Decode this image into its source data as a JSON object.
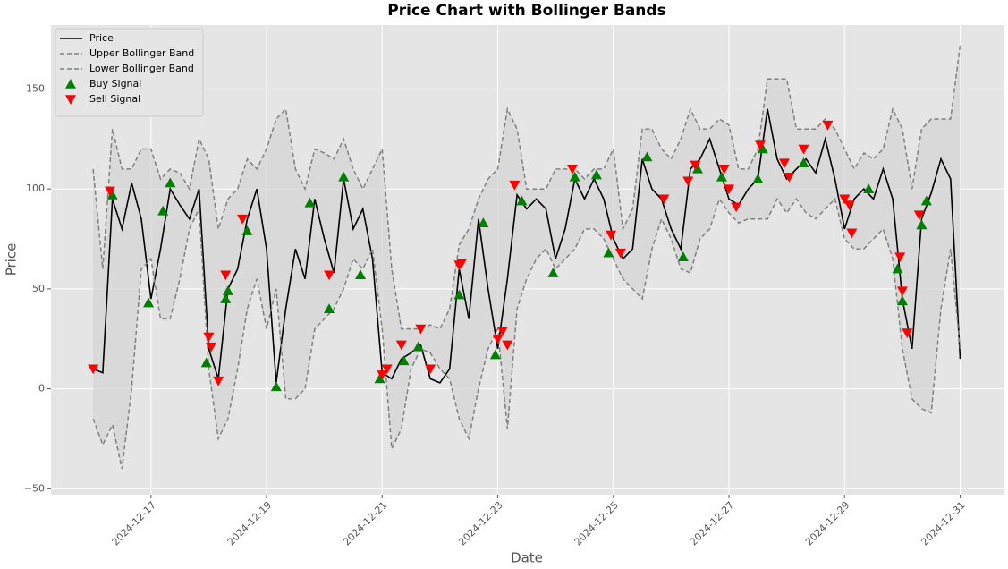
{
  "chart_data": {
    "type": "line",
    "title": "Price Chart with Bollinger Bands",
    "xlabel": "Date",
    "ylabel": "Price",
    "grid": true,
    "legend": "upper left",
    "band_fill": "#d4d4d4",
    "xlim": [
      "2024-12-15 06:30",
      "2024-12-31 18:00"
    ],
    "xticks": [
      "2024-12-17",
      "2024-12-19",
      "2024-12-21",
      "2024-12-23",
      "2024-12-25",
      "2024-12-27",
      "2024-12-29",
      "2024-12-31"
    ],
    "ylim": [
      -53,
      182
    ],
    "yticks": [
      {
        "value": -50,
        "label": "−50"
      },
      0,
      50,
      100,
      150
    ],
    "x": [
      "2024-12-16 00:00",
      "2024-12-16 04:00",
      "2024-12-16 08:00",
      "2024-12-16 12:00",
      "2024-12-16 16:00",
      "2024-12-16 20:00",
      "2024-12-17 00:00",
      "2024-12-17 04:00",
      "2024-12-17 08:00",
      "2024-12-17 12:00",
      "2024-12-17 16:00",
      "2024-12-17 20:00",
      "2024-12-18 00:00",
      "2024-12-18 04:00",
      "2024-12-18 08:00",
      "2024-12-18 12:00",
      "2024-12-18 16:00",
      "2024-12-18 20:00",
      "2024-12-19 00:00",
      "2024-12-19 04:00",
      "2024-12-19 08:00",
      "2024-12-19 12:00",
      "2024-12-19 16:00",
      "2024-12-19 20:00",
      "2024-12-20 00:00",
      "2024-12-20 04:00",
      "2024-12-20 08:00",
      "2024-12-20 12:00",
      "2024-12-20 16:00",
      "2024-12-20 20:00",
      "2024-12-21 00:00",
      "2024-12-21 04:00",
      "2024-12-21 08:00",
      "2024-12-21 12:00",
      "2024-12-21 16:00",
      "2024-12-21 20:00",
      "2024-12-22 00:00",
      "2024-12-22 04:00",
      "2024-12-22 08:00",
      "2024-12-22 12:00",
      "2024-12-22 16:00",
      "2024-12-22 20:00",
      "2024-12-23 00:00",
      "2024-12-23 04:00",
      "2024-12-23 08:00",
      "2024-12-23 12:00",
      "2024-12-23 16:00",
      "2024-12-23 20:00",
      "2024-12-24 00:00",
      "2024-12-24 04:00",
      "2024-12-24 08:00",
      "2024-12-24 12:00",
      "2024-12-24 16:00",
      "2024-12-24 20:00",
      "2024-12-25 00:00",
      "2024-12-25 04:00",
      "2024-12-25 08:00",
      "2024-12-25 12:00",
      "2024-12-25 16:00",
      "2024-12-25 20:00",
      "2024-12-26 00:00",
      "2024-12-26 04:00",
      "2024-12-26 08:00",
      "2024-12-26 12:00",
      "2024-12-26 16:00",
      "2024-12-26 20:00",
      "2024-12-27 00:00",
      "2024-12-27 04:00",
      "2024-12-27 08:00",
      "2024-12-27 12:00",
      "2024-12-27 16:00",
      "2024-12-27 20:00",
      "2024-12-28 00:00",
      "2024-12-28 04:00",
      "2024-12-28 08:00",
      "2024-12-28 12:00",
      "2024-12-28 16:00",
      "2024-12-28 20:00",
      "2024-12-29 00:00",
      "2024-12-29 04:00",
      "2024-12-29 08:00",
      "2024-12-29 12:00",
      "2024-12-29 16:00",
      "2024-12-29 20:00",
      "2024-12-30 00:00",
      "2024-12-30 04:00",
      "2024-12-30 08:00",
      "2024-12-30 12:00",
      "2024-12-30 16:00",
      "2024-12-30 20:00",
      "2024-12-31 00:00"
    ],
    "series": [
      {
        "name": "Price",
        "color": "#000000",
        "style": "solid",
        "values": [
          10,
          8,
          95,
          80,
          103,
          85,
          45,
          70,
          100,
          92,
          85,
          100,
          20,
          5,
          50,
          60,
          85,
          100,
          70,
          3,
          40,
          70,
          55,
          95,
          75,
          58,
          105,
          80,
          90,
          65,
          8,
          5,
          15,
          18,
          22,
          5,
          3,
          10,
          60,
          35,
          85,
          50,
          20,
          55,
          97,
          90,
          95,
          90,
          65,
          80,
          105,
          95,
          105,
          95,
          75,
          65,
          70,
          115,
          100,
          95,
          80,
          70,
          110,
          115,
          125,
          110,
          95,
          92,
          100,
          105,
          140,
          115,
          105,
          110,
          115,
          108,
          125,
          105,
          80,
          95,
          100,
          95,
          110,
          95,
          45,
          20,
          85,
          98,
          115,
          105,
          15
        ]
      },
      {
        "name": "Upper Bollinger Band",
        "color": "#808080",
        "style": "dashed",
        "values": [
          110,
          60,
          130,
          110,
          110,
          120,
          120,
          105,
          110,
          108,
          100,
          125,
          115,
          80,
          95,
          100,
          115,
          110,
          120,
          135,
          140,
          110,
          100,
          120,
          118,
          115,
          125,
          110,
          100,
          110,
          120,
          60,
          30,
          30,
          30,
          32,
          30,
          40,
          72,
          80,
          95,
          105,
          110,
          140,
          130,
          100,
          100,
          100,
          110,
          110,
          110,
          105,
          110,
          110,
          120,
          80,
          90,
          130,
          130,
          120,
          115,
          125,
          140,
          130,
          130,
          135,
          132,
          110,
          110,
          120,
          155,
          155,
          155,
          130,
          130,
          130,
          135,
          130,
          120,
          110,
          118,
          115,
          120,
          140,
          130,
          100,
          130,
          135,
          135,
          135,
          172
        ]
      },
      {
        "name": "Lower Bollinger Band",
        "color": "#808080",
        "style": "dashed",
        "values": [
          -15,
          -28,
          -18,
          -40,
          0,
          60,
          65,
          35,
          35,
          55,
          80,
          90,
          10,
          -25,
          -15,
          10,
          40,
          55,
          30,
          50,
          -5,
          -5,
          0,
          30,
          35,
          40,
          50,
          65,
          60,
          70,
          30,
          -30,
          -20,
          10,
          20,
          18,
          10,
          5,
          -15,
          -25,
          0,
          20,
          30,
          -20,
          40,
          55,
          65,
          70,
          60,
          65,
          70,
          80,
          80,
          75,
          65,
          55,
          50,
          45,
          70,
          85,
          75,
          60,
          58,
          75,
          80,
          95,
          88,
          83,
          85,
          85,
          85,
          95,
          88,
          95,
          88,
          85,
          90,
          95,
          75,
          70,
          70,
          75,
          80,
          65,
          20,
          -5,
          -10,
          -12,
          40,
          70,
          20
        ]
      },
      {
        "name": "Buy Signal",
        "color": "#008000",
        "marker": "up",
        "x": [
          "2024-12-16 08:00",
          "2024-12-16 23:00",
          "2024-12-17 05:00",
          "2024-12-17 08:00",
          "2024-12-17 23:00",
          "2024-12-18 07:00",
          "2024-12-18 08:00",
          "2024-12-18 16:00",
          "2024-12-19 04:00",
          "2024-12-19 18:00",
          "2024-12-20 02:00",
          "2024-12-20 08:00",
          "2024-12-20 15:00",
          "2024-12-20 23:00",
          "2024-12-21 09:00",
          "2024-12-21 15:00",
          "2024-12-22 08:00",
          "2024-12-22 18:00",
          "2024-12-22 23:00",
          "2024-12-23 10:00",
          "2024-12-23 23:00",
          "2024-12-24 08:00",
          "2024-12-24 17:00",
          "2024-12-24 22:00",
          "2024-12-25 14:00",
          "2024-12-26 05:00",
          "2024-12-26 11:00",
          "2024-12-26 21:00",
          "2024-12-27 12:00",
          "2024-12-27 14:00",
          "2024-12-28 07:00",
          "2024-12-29 10:00",
          "2024-12-29 22:00",
          "2024-12-30 00:00",
          "2024-12-30 08:00",
          "2024-12-30 10:00"
        ],
        "values": [
          97,
          43,
          89,
          103,
          13,
          45,
          49,
          79,
          1,
          93,
          40,
          106,
          57,
          5,
          14,
          21,
          47,
          83,
          17,
          94,
          58,
          106,
          107,
          68,
          116,
          66,
          110,
          106,
          105,
          120,
          113,
          100,
          60,
          44,
          82,
          94
        ]
      },
      {
        "name": "Sell Signal",
        "color": "#ff0000",
        "marker": "down",
        "x": [
          "2024-12-16 00:00",
          "2024-12-16 07:00",
          "2024-12-18 00:00",
          "2024-12-18 01:00",
          "2024-12-18 04:00",
          "2024-12-18 07:00",
          "2024-12-18 14:00",
          "2024-12-20 02:00",
          "2024-12-21 00:00",
          "2024-12-21 02:00",
          "2024-12-21 08:00",
          "2024-12-21 16:00",
          "2024-12-21 20:00",
          "2024-12-22 08:00",
          "2024-12-22 09:00",
          "2024-12-23 00:00",
          "2024-12-23 02:00",
          "2024-12-23 04:00",
          "2024-12-23 07:00",
          "2024-12-24 07:00",
          "2024-12-24 23:00",
          "2024-12-25 03:00",
          "2024-12-25 21:00",
          "2024-12-26 07:00",
          "2024-12-26 10:00",
          "2024-12-26 22:00",
          "2024-12-27 00:00",
          "2024-12-27 03:00",
          "2024-12-27 13:00",
          "2024-12-27 23:00",
          "2024-12-28 01:00",
          "2024-12-28 07:00",
          "2024-12-28 17:00",
          "2024-12-29 00:00",
          "2024-12-29 02:00",
          "2024-12-29 03:00",
          "2024-12-29 23:00",
          "2024-12-30 00:00",
          "2024-12-30 02:00",
          "2024-12-30 07:00"
        ],
        "values": [
          10,
          99,
          26,
          21,
          4,
          57,
          85,
          57,
          7,
          10,
          22,
          30,
          10,
          62,
          63,
          25,
          29,
          22,
          102,
          110,
          77,
          68,
          95,
          104,
          112,
          110,
          100,
          91,
          122,
          113,
          106,
          120,
          132,
          95,
          92,
          78,
          66,
          49,
          28,
          87
        ]
      }
    ]
  }
}
